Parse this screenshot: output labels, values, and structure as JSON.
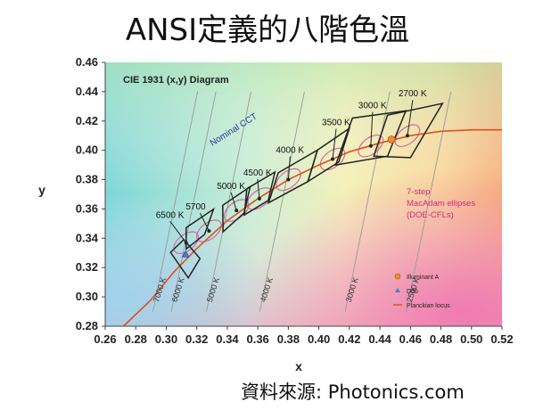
{
  "page": {
    "title": "ANSI定義的八階色溫",
    "source": "資料來源: Photonics.com"
  },
  "chart_data": {
    "type": "scatter",
    "title": "CIE 1931 (x,y) Diagram",
    "xlabel": "x",
    "ylabel": "y",
    "xlim": [
      0.26,
      0.52
    ],
    "ylim": [
      0.28,
      0.46
    ],
    "x_ticks": [
      "0.26",
      "0.28",
      "0.30",
      "0.32",
      "0.34",
      "0.36",
      "0.38",
      "0.40",
      "0.42",
      "0.44",
      "0.46",
      "0.48",
      "0.50",
      "0.52"
    ],
    "y_ticks": [
      "0.28",
      "0.30",
      "0.32",
      "0.34",
      "0.36",
      "0.38",
      "0.40",
      "0.42",
      "0.44",
      "0.46"
    ],
    "grid": false,
    "nominal_cct_label": "Nominal CCT",
    "nominal_cct": [
      {
        "label": "6500 K",
        "x": 0.313,
        "y": 0.337
      },
      {
        "label": "5700",
        "x": 0.328,
        "y": 0.345
      },
      {
        "label": "5000 K",
        "x": 0.346,
        "y": 0.359
      },
      {
        "label": "4500 K",
        "x": 0.361,
        "y": 0.367
      },
      {
        "label": "4000 K",
        "x": 0.38,
        "y": 0.38
      },
      {
        "label": "3500 K",
        "x": 0.409,
        "y": 0.394
      },
      {
        "label": "3000 K",
        "x": 0.434,
        "y": 0.403
      },
      {
        "label": "2700 K",
        "x": 0.458,
        "y": 0.41
      }
    ],
    "quadrangles": [
      {
        "label": "6500 K",
        "corners": [
          [
            0.3028,
            0.3304
          ],
          [
            0.3115,
            0.3391
          ],
          [
            0.3221,
            0.3261
          ],
          [
            0.3144,
            0.313
          ]
        ]
      },
      {
        "label": "5700",
        "corners": [
          [
            0.3131,
            0.3327
          ],
          [
            0.313,
            0.3472
          ],
          [
            0.331,
            0.3599
          ],
          [
            0.3251,
            0.3426
          ]
        ]
      },
      {
        "label": "5000 K",
        "corners": [
          [
            0.3372,
            0.3444
          ],
          [
            0.337,
            0.3625
          ],
          [
            0.355,
            0.3752
          ],
          [
            0.351,
            0.3573
          ]
        ]
      },
      {
        "label": "4500 K",
        "corners": [
          [
            0.3512,
            0.3559
          ],
          [
            0.3528,
            0.3738
          ],
          [
            0.3712,
            0.3852
          ],
          [
            0.3668,
            0.3658
          ]
        ]
      },
      {
        "label": "4000 K",
        "corners": [
          [
            0.367,
            0.3642
          ],
          [
            0.3734,
            0.3847
          ],
          [
            0.3991,
            0.4002
          ],
          [
            0.3928,
            0.3787
          ]
        ]
      },
      {
        "label": "3500 K",
        "corners": [
          [
            0.3928,
            0.3787
          ],
          [
            0.3991,
            0.4002
          ],
          [
            0.42,
            0.415
          ],
          [
            0.413,
            0.392
          ]
        ]
      },
      {
        "label": "3000 K",
        "corners": [
          [
            0.411,
            0.39
          ],
          [
            0.422,
            0.422
          ],
          [
            0.457,
            0.427
          ],
          [
            0.445,
            0.396
          ]
        ]
      },
      {
        "label": "2700 K",
        "corners": [
          [
            0.436,
            0.396
          ],
          [
            0.445,
            0.424
          ],
          [
            0.481,
            0.432
          ],
          [
            0.46,
            0.395
          ]
        ]
      }
    ],
    "iso_cct_lines": [
      {
        "label": "7000 K",
        "x": 0.31
      },
      {
        "label": "6000 K",
        "x": 0.322
      },
      {
        "label": "5000 K",
        "x": 0.345
      },
      {
        "label": "4000 K",
        "x": 0.38
      },
      {
        "label": "3000 K",
        "x": 0.436
      },
      {
        "label": "2500 K",
        "x": 0.476
      }
    ],
    "planckian_locus": [
      {
        "x": 0.272,
        "y": 0.28
      },
      {
        "x": 0.29,
        "y": 0.298
      },
      {
        "x": 0.305,
        "y": 0.317
      },
      {
        "x": 0.32,
        "y": 0.333
      },
      {
        "x": 0.34,
        "y": 0.352
      },
      {
        "x": 0.36,
        "y": 0.367
      },
      {
        "x": 0.38,
        "y": 0.38
      },
      {
        "x": 0.4,
        "y": 0.39
      },
      {
        "x": 0.42,
        "y": 0.399
      },
      {
        "x": 0.44,
        "y": 0.405
      },
      {
        "x": 0.46,
        "y": 0.41
      },
      {
        "x": 0.48,
        "y": 0.413
      },
      {
        "x": 0.5,
        "y": 0.414
      },
      {
        "x": 0.52,
        "y": 0.414
      }
    ],
    "macadam_note": [
      "7-step",
      "MacAdam ellipses",
      "(DOE-CFLs)"
    ],
    "illuminant_a": {
      "x": 0.4476,
      "y": 0.4074
    },
    "d65": {
      "x": 0.3127,
      "y": 0.329
    },
    "legend": [
      {
        "label": "Illuminant A",
        "color": "#f28c28"
      },
      {
        "label": "D65",
        "color": "#3d7fd6"
      },
      {
        "label": "Planckian locus",
        "color": "#e05020"
      }
    ],
    "colors": {
      "outline": "#222222",
      "locus": "#e05020",
      "ellipse": "#d46aa0",
      "nominal_label": "#2b3a9b"
    }
  }
}
